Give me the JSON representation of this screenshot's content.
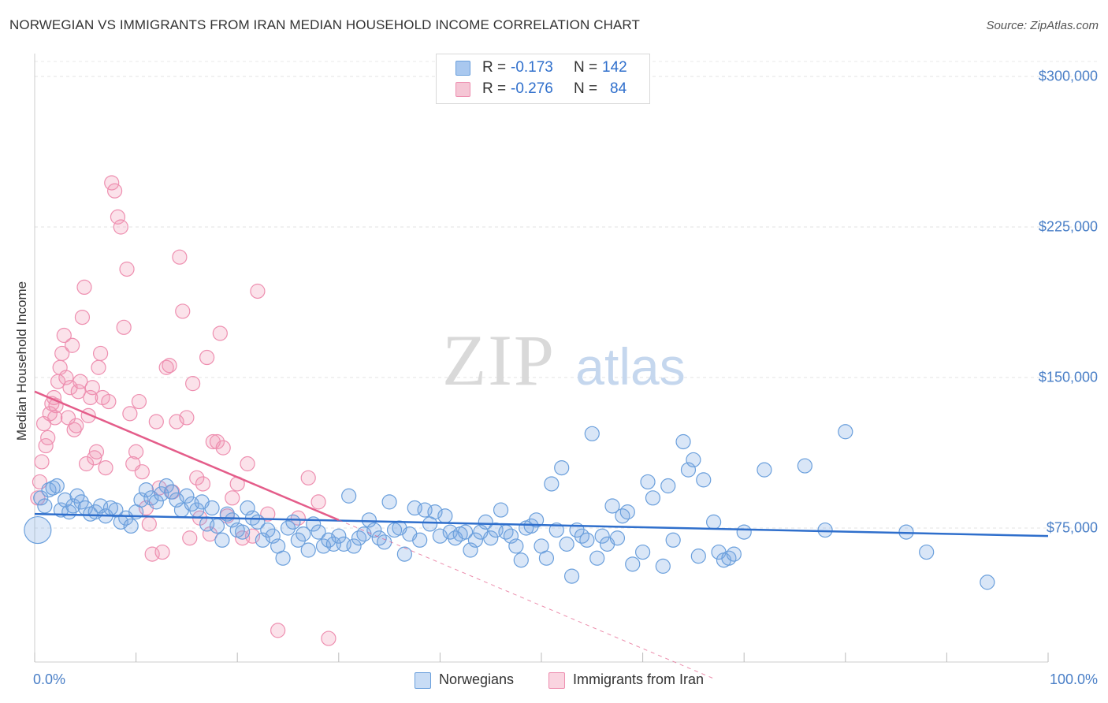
{
  "title": "NORWEGIAN VS IMMIGRANTS FROM IRAN MEDIAN HOUSEHOLD INCOME CORRELATION CHART",
  "source": "Source: ZipAtlas.com",
  "watermark": {
    "zip": "ZIP",
    "atlas": "atlas"
  },
  "legend_top": {
    "rows": [
      {
        "r_label": "R =",
        "r_value": "-0.173",
        "n_label": "N =",
        "n_value": "142",
        "color": "#a9c8ef"
      },
      {
        "r_label": "R =",
        "r_value": "-0.276",
        "n_label": "N =",
        "n_value": "84",
        "color": "#f5b8cb"
      }
    ]
  },
  "legend_bottom": {
    "items": [
      {
        "label": "Norwegians",
        "color": "#a9c8ef"
      },
      {
        "label": "Immigrants from Iran",
        "color": "#f5b8cb"
      }
    ]
  },
  "colors": {
    "blue_fill": "rgba(120,165,225,0.28)",
    "blue_stroke": "#6a9fdc",
    "blue_line": "#2f6fcc",
    "pink_fill": "rgba(240,150,180,0.28)",
    "pink_stroke": "#ee8fb0",
    "pink_line": "#e45d8a",
    "tick_label": "#4a7fc7"
  },
  "chart_data": {
    "type": "scatter",
    "title": "NORWEGIAN VS IMMIGRANTS FROM IRAN MEDIAN HOUSEHOLD INCOME CORRELATION CHART",
    "xlabel": "",
    "ylabel": "Median Household Income",
    "x_ticks": [
      "0.0%",
      "100.0%"
    ],
    "y_ticks": [
      "$75,000",
      "$150,000",
      "$225,000",
      "$300,000"
    ],
    "y_tick_values": [
      75000,
      150000,
      225000,
      300000
    ],
    "xlim": [
      0,
      100
    ],
    "ylim": [
      0,
      305000
    ],
    "grid": "horizontal dashed",
    "series": [
      {
        "name": "Norwegians",
        "r": -0.173,
        "n": 142,
        "trend": {
          "x": [
            0,
            100
          ],
          "y": [
            82000,
            71000
          ],
          "style": "solid"
        },
        "points": [
          [
            0.3,
            74000
          ],
          [
            0.6,
            90000
          ],
          [
            1.0,
            86000
          ],
          [
            1.4,
            94000
          ],
          [
            1.8,
            95000
          ],
          [
            2.2,
            96000
          ],
          [
            2.6,
            84000
          ],
          [
            3.0,
            89000
          ],
          [
            3.4,
            83000
          ],
          [
            3.8,
            86000
          ],
          [
            4.2,
            91000
          ],
          [
            4.6,
            88000
          ],
          [
            5.0,
            85000
          ],
          [
            5.5,
            82000
          ],
          [
            6.0,
            83000
          ],
          [
            6.5,
            86000
          ],
          [
            7.0,
            81000
          ],
          [
            7.5,
            85000
          ],
          [
            8.0,
            84000
          ],
          [
            8.5,
            78000
          ],
          [
            9.0,
            80000
          ],
          [
            9.5,
            76000
          ],
          [
            10.0,
            83000
          ],
          [
            10.5,
            89000
          ],
          [
            11.0,
            94000
          ],
          [
            11.5,
            90000
          ],
          [
            12.0,
            88000
          ],
          [
            12.5,
            92000
          ],
          [
            13.0,
            96000
          ],
          [
            13.5,
            93000
          ],
          [
            14.0,
            89000
          ],
          [
            14.5,
            84000
          ],
          [
            15.0,
            91000
          ],
          [
            15.5,
            87000
          ],
          [
            16.0,
            84000
          ],
          [
            16.5,
            88000
          ],
          [
            17.0,
            77000
          ],
          [
            17.5,
            85000
          ],
          [
            18.0,
            76000
          ],
          [
            18.5,
            69000
          ],
          [
            19.0,
            82000
          ],
          [
            19.5,
            79000
          ],
          [
            20.0,
            74000
          ],
          [
            20.5,
            73000
          ],
          [
            21.0,
            85000
          ],
          [
            21.5,
            80000
          ],
          [
            22.0,
            78000
          ],
          [
            22.5,
            69000
          ],
          [
            23.0,
            74000
          ],
          [
            23.5,
            71000
          ],
          [
            24.0,
            66000
          ],
          [
            24.5,
            60000
          ],
          [
            25.0,
            75000
          ],
          [
            25.5,
            78000
          ],
          [
            26.0,
            69000
          ],
          [
            26.5,
            72000
          ],
          [
            27.0,
            64000
          ],
          [
            27.5,
            77000
          ],
          [
            28.0,
            73000
          ],
          [
            28.5,
            66000
          ],
          [
            29.0,
            69000
          ],
          [
            29.5,
            67000
          ],
          [
            30.0,
            71000
          ],
          [
            30.5,
            67000
          ],
          [
            31.0,
            91000
          ],
          [
            31.5,
            66000
          ],
          [
            32.0,
            70000
          ],
          [
            32.5,
            72000
          ],
          [
            33.0,
            79000
          ],
          [
            33.5,
            74000
          ],
          [
            34.0,
            70000
          ],
          [
            34.5,
            68000
          ],
          [
            35.0,
            88000
          ],
          [
            35.5,
            74000
          ],
          [
            36.0,
            75000
          ],
          [
            36.5,
            62000
          ],
          [
            37.0,
            72000
          ],
          [
            37.5,
            85000
          ],
          [
            38.0,
            69000
          ],
          [
            38.5,
            84000
          ],
          [
            39.0,
            77000
          ],
          [
            39.5,
            83000
          ],
          [
            40.0,
            71000
          ],
          [
            40.5,
            81000
          ],
          [
            41.0,
            73000
          ],
          [
            41.5,
            70000
          ],
          [
            42.0,
            72000
          ],
          [
            42.5,
            73000
          ],
          [
            43.0,
            64000
          ],
          [
            43.5,
            69000
          ],
          [
            44.0,
            73000
          ],
          [
            44.5,
            78000
          ],
          [
            45.0,
            70000
          ],
          [
            45.5,
            74000
          ],
          [
            46.0,
            84000
          ],
          [
            46.5,
            73000
          ],
          [
            47.0,
            71000
          ],
          [
            47.5,
            66000
          ],
          [
            48.0,
            59000
          ],
          [
            48.5,
            75000
          ],
          [
            49.0,
            76000
          ],
          [
            49.5,
            79000
          ],
          [
            50.0,
            66000
          ],
          [
            50.5,
            60000
          ],
          [
            51.0,
            97000
          ],
          [
            51.5,
            74000
          ],
          [
            52.0,
            105000
          ],
          [
            52.5,
            67000
          ],
          [
            53.0,
            51000
          ],
          [
            53.5,
            74000
          ],
          [
            54.0,
            71000
          ],
          [
            54.5,
            69000
          ],
          [
            55.0,
            122000
          ],
          [
            55.5,
            60000
          ],
          [
            56.0,
            71000
          ],
          [
            56.5,
            67000
          ],
          [
            57.0,
            86000
          ],
          [
            57.5,
            70000
          ],
          [
            58.0,
            81000
          ],
          [
            58.5,
            83000
          ],
          [
            59.0,
            57000
          ],
          [
            60.0,
            63000
          ],
          [
            60.5,
            98000
          ],
          [
            61.0,
            90000
          ],
          [
            62.0,
            56000
          ],
          [
            62.5,
            96000
          ],
          [
            63.0,
            69000
          ],
          [
            64.0,
            118000
          ],
          [
            64.5,
            104000
          ],
          [
            65.0,
            109000
          ],
          [
            65.5,
            61000
          ],
          [
            66.0,
            99000
          ],
          [
            67.0,
            78000
          ],
          [
            67.5,
            63000
          ],
          [
            68.0,
            59000
          ],
          [
            68.5,
            60000
          ],
          [
            69.0,
            62000
          ],
          [
            70.0,
            73000
          ],
          [
            72.0,
            104000
          ],
          [
            76.0,
            106000
          ],
          [
            78.0,
            74000
          ],
          [
            80.0,
            123000
          ],
          [
            86.0,
            73000
          ],
          [
            88.0,
            63000
          ],
          [
            94.0,
            48000
          ]
        ]
      },
      {
        "name": "Immigrants from Iran",
        "r": -0.276,
        "n": 84,
        "trend": {
          "x": [
            0,
            30
          ],
          "y": [
            143000,
            79000
          ],
          "style": "solid",
          "extended": {
            "x": [
              30,
              67
            ],
            "y": [
              79000,
              0
            ],
            "style": "dashed"
          }
        },
        "points": [
          [
            0.3,
            90000
          ],
          [
            0.5,
            98000
          ],
          [
            0.7,
            108000
          ],
          [
            0.9,
            127000
          ],
          [
            1.1,
            116000
          ],
          [
            1.3,
            120000
          ],
          [
            1.5,
            132000
          ],
          [
            1.7,
            137000
          ],
          [
            1.9,
            140000
          ],
          [
            2.1,
            136000
          ],
          [
            2.3,
            148000
          ],
          [
            2.5,
            155000
          ],
          [
            2.7,
            162000
          ],
          [
            2.9,
            171000
          ],
          [
            3.1,
            150000
          ],
          [
            3.3,
            130000
          ],
          [
            3.5,
            145000
          ],
          [
            3.7,
            166000
          ],
          [
            3.9,
            124000
          ],
          [
            4.1,
            126000
          ],
          [
            4.3,
            143000
          ],
          [
            4.5,
            148000
          ],
          [
            4.7,
            180000
          ],
          [
            4.9,
            195000
          ],
          [
            5.1,
            107000
          ],
          [
            5.3,
            131000
          ],
          [
            5.5,
            140000
          ],
          [
            5.7,
            145000
          ],
          [
            5.9,
            110000
          ],
          [
            6.1,
            113000
          ],
          [
            6.3,
            155000
          ],
          [
            6.5,
            162000
          ],
          [
            6.7,
            140000
          ],
          [
            7.0,
            105000
          ],
          [
            7.3,
            138000
          ],
          [
            7.6,
            247000
          ],
          [
            7.9,
            243000
          ],
          [
            8.2,
            230000
          ],
          [
            8.5,
            225000
          ],
          [
            8.8,
            175000
          ],
          [
            9.1,
            204000
          ],
          [
            9.4,
            132000
          ],
          [
            9.7,
            107000
          ],
          [
            10.0,
            113000
          ],
          [
            10.3,
            138000
          ],
          [
            10.6,
            103000
          ],
          [
            11.0,
            85000
          ],
          [
            11.3,
            77000
          ],
          [
            11.6,
            62000
          ],
          [
            12.0,
            128000
          ],
          [
            12.3,
            95000
          ],
          [
            12.6,
            63000
          ],
          [
            13.0,
            155000
          ],
          [
            13.3,
            156000
          ],
          [
            13.6,
            93000
          ],
          [
            14.0,
            128000
          ],
          [
            14.3,
            210000
          ],
          [
            14.6,
            183000
          ],
          [
            15.0,
            130000
          ],
          [
            15.3,
            70000
          ],
          [
            15.6,
            147000
          ],
          [
            16.0,
            100000
          ],
          [
            16.3,
            80000
          ],
          [
            16.6,
            97000
          ],
          [
            17.0,
            160000
          ],
          [
            17.3,
            72000
          ],
          [
            17.6,
            118000
          ],
          [
            18.0,
            118000
          ],
          [
            18.3,
            172000
          ],
          [
            18.6,
            115000
          ],
          [
            19.0,
            81000
          ],
          [
            19.5,
            90000
          ],
          [
            20.0,
            97000
          ],
          [
            20.5,
            70000
          ],
          [
            21.0,
            107000
          ],
          [
            21.5,
            71000
          ],
          [
            22.0,
            193000
          ],
          [
            23.0,
            82000
          ],
          [
            24.0,
            24000
          ],
          [
            26.0,
            80000
          ],
          [
            27.0,
            100000
          ],
          [
            28.0,
            88000
          ],
          [
            29.0,
            20000
          ],
          [
            2.0,
            130000
          ]
        ]
      }
    ]
  }
}
